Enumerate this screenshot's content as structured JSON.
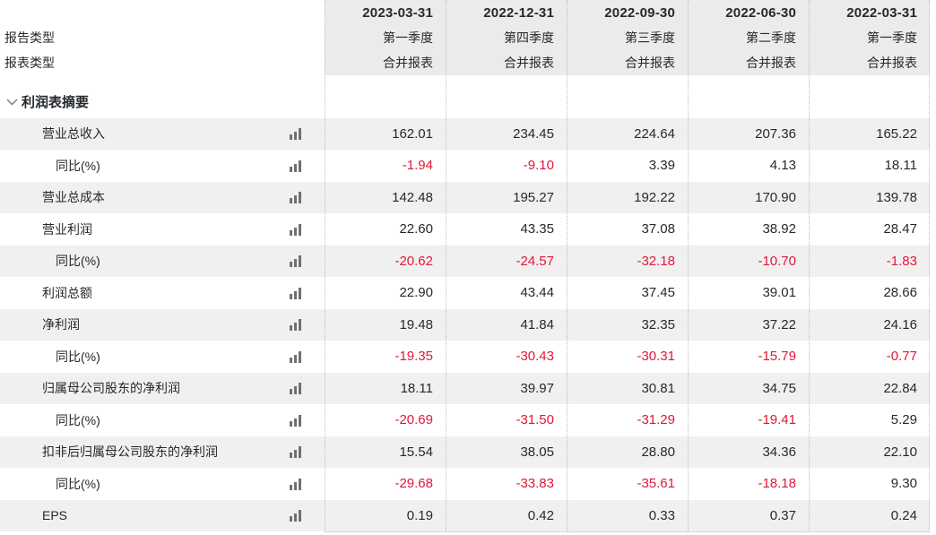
{
  "table": {
    "columns": [
      "2023-03-31",
      "2022-12-31",
      "2022-09-30",
      "2022-06-30",
      "2022-03-31"
    ],
    "report_type": {
      "label": "报告类型",
      "values": [
        "第一季度",
        "第四季度",
        "第三季度",
        "第二季度",
        "第一季度"
      ]
    },
    "statement_type": {
      "label": "报表类型",
      "values": [
        "合并报表",
        "合并报表",
        "合并报表",
        "合并报表",
        "合并报表"
      ]
    },
    "section": {
      "label": "利润表摘要"
    },
    "rows": [
      {
        "label": "营业总收入",
        "indent": 1,
        "values": [
          "162.01",
          "234.45",
          "224.64",
          "207.36",
          "165.22"
        ]
      },
      {
        "label": "同比(%)",
        "indent": 2,
        "values": [
          "-1.94",
          "-9.10",
          "3.39",
          "4.13",
          "18.11"
        ]
      },
      {
        "label": "营业总成本",
        "indent": 1,
        "values": [
          "142.48",
          "195.27",
          "192.22",
          "170.90",
          "139.78"
        ]
      },
      {
        "label": "营业利润",
        "indent": 1,
        "values": [
          "22.60",
          "43.35",
          "37.08",
          "38.92",
          "28.47"
        ]
      },
      {
        "label": "同比(%)",
        "indent": 2,
        "values": [
          "-20.62",
          "-24.57",
          "-32.18",
          "-10.70",
          "-1.83"
        ]
      },
      {
        "label": "利润总额",
        "indent": 1,
        "values": [
          "22.90",
          "43.44",
          "37.45",
          "39.01",
          "28.66"
        ]
      },
      {
        "label": "净利润",
        "indent": 1,
        "values": [
          "19.48",
          "41.84",
          "32.35",
          "37.22",
          "24.16"
        ]
      },
      {
        "label": "同比(%)",
        "indent": 2,
        "values": [
          "-19.35",
          "-30.43",
          "-30.31",
          "-15.79",
          "-0.77"
        ]
      },
      {
        "label": "归属母公司股东的净利润",
        "indent": 1,
        "values": [
          "18.11",
          "39.97",
          "30.81",
          "34.75",
          "22.84"
        ]
      },
      {
        "label": "同比(%)",
        "indent": 2,
        "values": [
          "-20.69",
          "-31.50",
          "-31.29",
          "-19.41",
          "5.29"
        ]
      },
      {
        "label": "扣非后归属母公司股东的净利润",
        "indent": 1,
        "values": [
          "15.54",
          "38.05",
          "28.80",
          "34.36",
          "22.10"
        ]
      },
      {
        "label": "同比(%)",
        "indent": 2,
        "values": [
          "-29.68",
          "-33.83",
          "-35.61",
          "-18.18",
          "9.30"
        ]
      },
      {
        "label": "EPS",
        "indent": 1,
        "values": [
          "0.19",
          "0.42",
          "0.33",
          "0.37",
          "0.24"
        ]
      }
    ]
  },
  "icons": {
    "row_icon": "bar-chart-icon",
    "section_icon": "chevron-down-icon"
  },
  "colors": {
    "text": "#24292e",
    "negative": "#e0173a",
    "stripe": "#f0f0f0",
    "header-bg": "#ebebeb",
    "icon": "#707070"
  }
}
